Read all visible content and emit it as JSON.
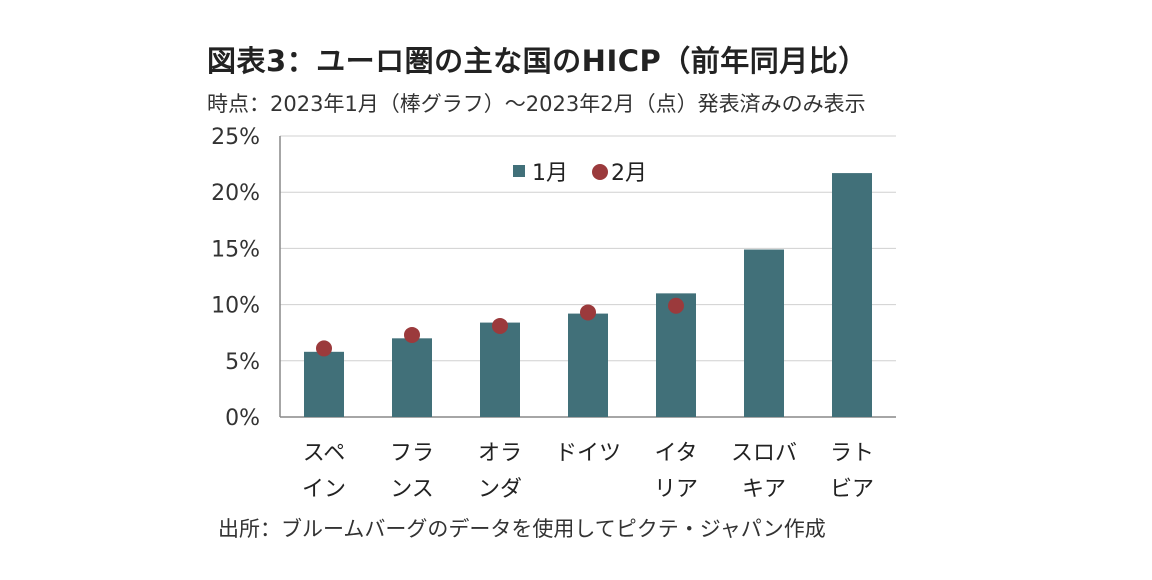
{
  "chart_data": {
    "type": "bar",
    "title": "図表3：ユーロ圏の主な国のHICP（前年同月比）",
    "subtitle": "時点：2023年1月（棒グラフ）～2023年2月（点）発表済みのみ表示",
    "source": "出所：ブルームバーグのデータを使用してピクテ・ジャパン作成",
    "categories": [
      [
        "スペ",
        "イン"
      ],
      [
        "フラ",
        "ンス"
      ],
      [
        "オラ",
        "ンダ"
      ],
      [
        "ドイツ",
        ""
      ],
      [
        "イタ",
        "リア"
      ],
      [
        "スロバ",
        "キア"
      ],
      [
        "ラト",
        "ビア"
      ]
    ],
    "series": [
      {
        "name": "1月",
        "kind": "bar",
        "color": "#417079",
        "values": [
          5.8,
          7.0,
          8.4,
          9.2,
          11.0,
          14.9,
          21.7
        ]
      },
      {
        "name": "2月",
        "kind": "point",
        "color": "#9b3a3c",
        "values": [
          6.1,
          7.3,
          8.1,
          9.3,
          9.9,
          null,
          null
        ]
      }
    ],
    "ylim": [
      0,
      25
    ],
    "yticks": [
      "0%",
      "5%",
      "10%",
      "15%",
      "20%",
      "25%"
    ],
    "grid": true,
    "legend": "top-center"
  }
}
